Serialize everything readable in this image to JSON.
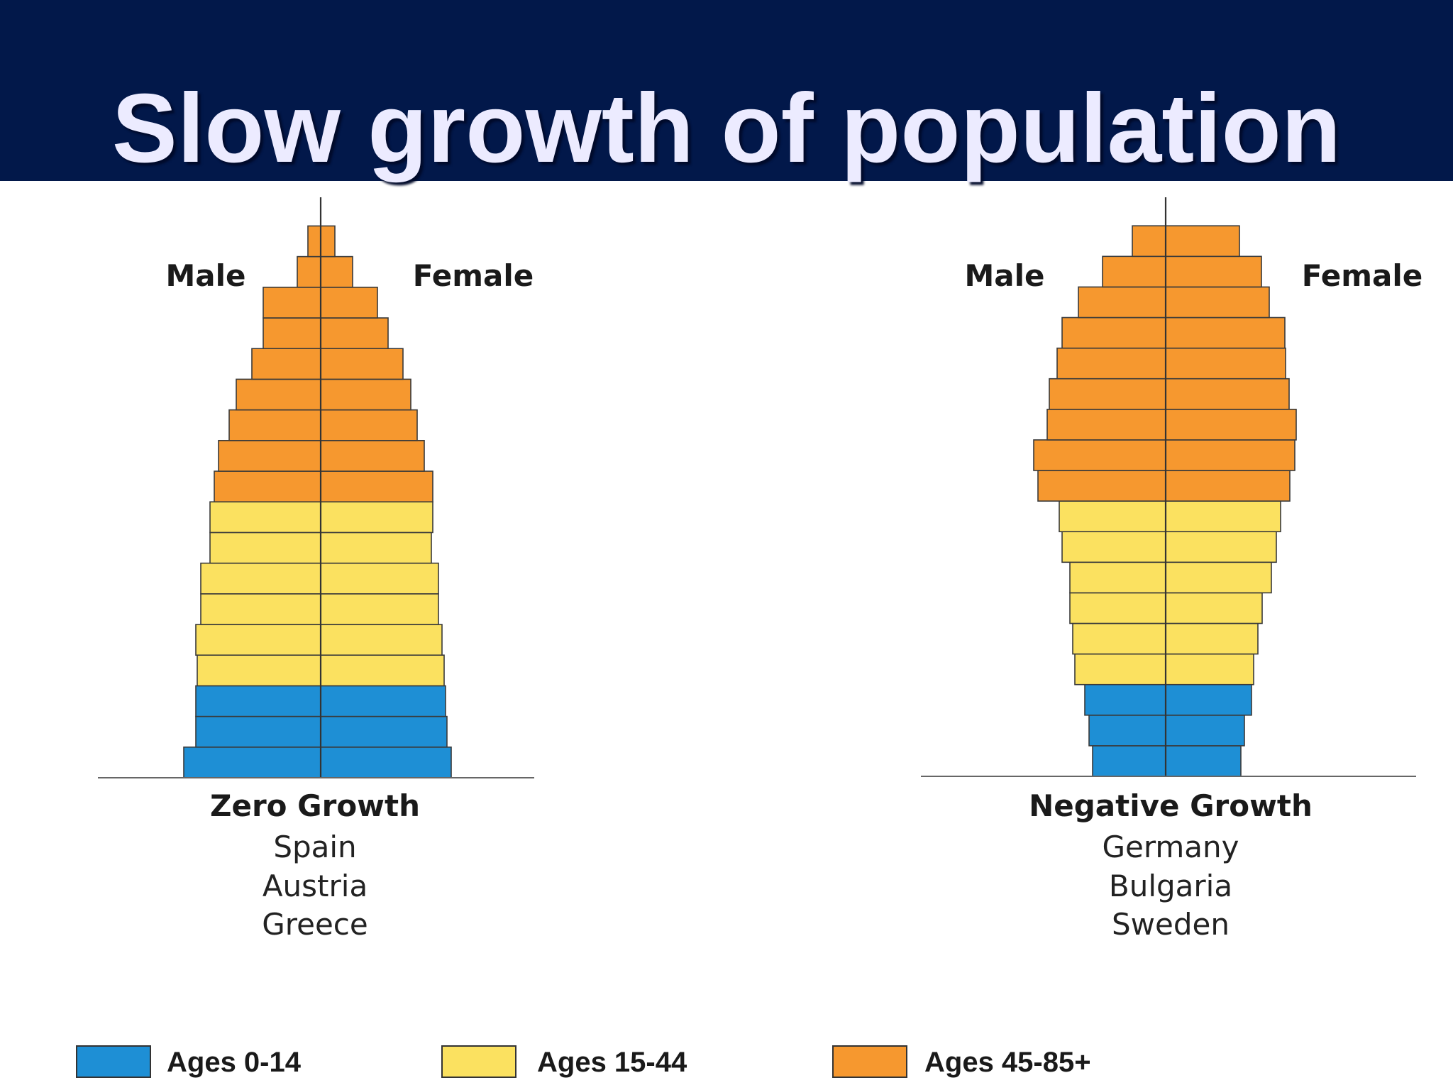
{
  "slide": {
    "title": "Slow growth of population"
  },
  "colors": {
    "header_bg": "#02184a",
    "title_text": "#ecebff",
    "ages_0_14": "#1e8fd5",
    "ages_15_44": "#fbe160",
    "ages_45_85": "#f6982f",
    "outline": "#3a3a3a"
  },
  "legend": [
    {
      "label": "Ages 0-14",
      "color": "#1e8fd5"
    },
    {
      "label": "Ages 15-44",
      "color": "#fbe160"
    },
    {
      "label": "Ages 45-85+",
      "color": "#f6982f"
    }
  ],
  "chart_data": [
    {
      "type": "bar",
      "orientation": "horizontal-population-pyramid",
      "title": "Zero Growth",
      "subtitle": [
        "Spain",
        "Austria",
        "Greece"
      ],
      "side_labels": {
        "left": "Male",
        "right": "Female"
      },
      "grid": false,
      "age_groups_bottom_to_top": 18,
      "group_bands": [
        "Ages 0-14",
        "Ages 0-14",
        "Ages 0-14",
        "Ages 15-44",
        "Ages 15-44",
        "Ages 15-44",
        "Ages 15-44",
        "Ages 15-44",
        "Ages 15-44",
        "Ages 45-85+",
        "Ages 45-85+",
        "Ages 45-85+",
        "Ages 45-85+",
        "Ages 45-85+",
        "Ages 45-85+",
        "Ages 45-85+",
        "Ages 45-85+",
        "Ages 45-85+"
      ],
      "series": [
        {
          "name": "Male",
          "values": [
            19.3,
            17.6,
            17.6,
            17.4,
            17.6,
            16.9,
            16.9,
            15.6,
            15.6,
            15.0,
            14.4,
            12.9,
            11.9,
            9.7,
            8.1,
            8.1,
            3.3,
            1.8
          ]
        },
        {
          "name": "Female",
          "values": [
            18.4,
            17.8,
            17.6,
            17.4,
            17.1,
            16.6,
            16.6,
            15.6,
            15.8,
            15.8,
            14.6,
            13.6,
            12.7,
            11.6,
            9.5,
            8.0,
            4.5,
            2.0
          ]
        }
      ]
    },
    {
      "type": "bar",
      "orientation": "horizontal-population-pyramid",
      "title": "Negative Growth",
      "subtitle": [
        "Germany",
        "Bulgaria",
        "Sweden"
      ],
      "side_labels": {
        "left": "Male",
        "right": "Female"
      },
      "grid": false,
      "age_groups_bottom_to_top": 18,
      "group_bands": [
        "Ages 0-14",
        "Ages 0-14",
        "Ages 0-14",
        "Ages 15-44",
        "Ages 15-44",
        "Ages 15-44",
        "Ages 15-44",
        "Ages 15-44",
        "Ages 15-44",
        "Ages 45-85+",
        "Ages 45-85+",
        "Ages 45-85+",
        "Ages 45-85+",
        "Ages 45-85+",
        "Ages 45-85+",
        "Ages 45-85+",
        "Ages 45-85+",
        "Ages 45-85+"
      ],
      "series": [
        {
          "name": "Male",
          "values": [
            10.3,
            10.8,
            11.4,
            12.8,
            13.1,
            13.5,
            13.5,
            14.6,
            15.0,
            18.0,
            18.6,
            16.7,
            16.4,
            15.3,
            14.6,
            12.3,
            8.9,
            4.7
          ]
        },
        {
          "name": "Female",
          "values": [
            10.6,
            11.1,
            12.1,
            12.4,
            13.0,
            13.6,
            14.9,
            15.6,
            16.2,
            17.5,
            18.2,
            18.4,
            17.4,
            16.9,
            16.8,
            14.6,
            13.5,
            10.4
          ]
        }
      ]
    }
  ]
}
